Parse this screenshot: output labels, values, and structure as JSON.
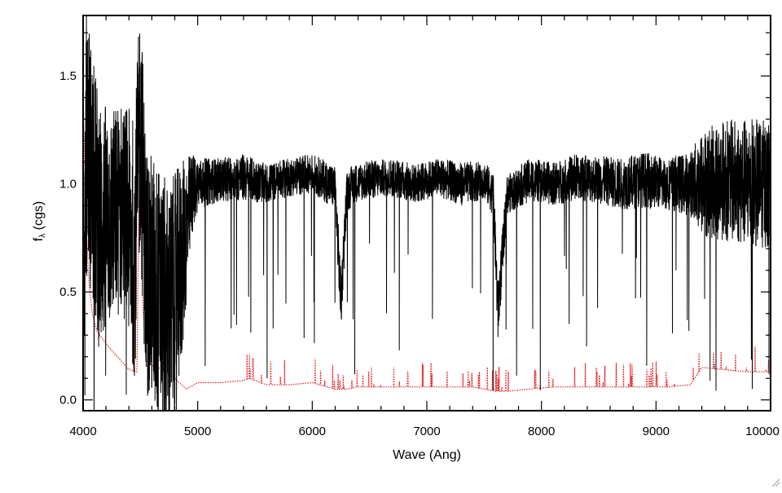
{
  "chart_data": {
    "type": "line",
    "xlabel": "Wave (Ang)",
    "ylabel": "f",
    "ylabel_subscript": "λ",
    "ylabel_suffix": " (cgs)",
    "xlim": [
      4000,
      10000
    ],
    "ylim": [
      -0.05,
      1.78
    ],
    "x_ticks": [
      {
        "value": 4000,
        "label": "4000"
      },
      {
        "value": 5000,
        "label": "5000"
      },
      {
        "value": 6000,
        "label": "6000"
      },
      {
        "value": 7000,
        "label": "7000"
      },
      {
        "value": 8000,
        "label": "8000"
      },
      {
        "value": 9000,
        "label": "9000"
      },
      {
        "value": 10000,
        "label": "10000"
      }
    ],
    "y_ticks": [
      {
        "value": 0.0,
        "label": "0.0"
      },
      {
        "value": 0.5,
        "label": "0.5"
      },
      {
        "value": 1.0,
        "label": "1.0"
      },
      {
        "value": 1.5,
        "label": "1.5"
      }
    ],
    "grid": false,
    "series": [
      {
        "style": "solid",
        "color": "#000000",
        "x": [
          4000,
          4030,
          4080,
          4150,
          4250,
          4350,
          4450,
          4500,
          4550,
          4650,
          4750,
          4850,
          4950,
          5000,
          5200,
          5400,
          5600,
          5800,
          6000,
          6150,
          6200,
          6250,
          6300,
          6350,
          6500,
          6700,
          6900,
          7100,
          7300,
          7500,
          7580,
          7620,
          7700,
          7900,
          8100,
          8300,
          8500,
          8700,
          8900,
          9100,
          9300,
          9400,
          9600,
          9800,
          10000
        ],
        "y": [
          0.2,
          1.3,
          1.0,
          0.8,
          0.85,
          0.9,
          0.7,
          1.3,
          0.6,
          0.5,
          0.4,
          0.6,
          0.95,
          1.0,
          1.02,
          1.03,
          1.0,
          1.03,
          1.05,
          1.0,
          0.98,
          0.45,
          0.95,
          1.0,
          1.02,
          1.03,
          1.0,
          1.03,
          1.0,
          1.02,
          0.95,
          0.4,
          0.95,
          1.02,
          1.0,
          1.03,
          1.02,
          1.0,
          1.02,
          1.0,
          1.0,
          1.0,
          1.02,
          1.0,
          1.0
        ],
        "noise": [
          0.1,
          0.6,
          0.6,
          0.6,
          0.5,
          0.5,
          0.6,
          0.6,
          0.6,
          0.6,
          0.6,
          0.5,
          0.2,
          0.12,
          0.1,
          0.11,
          0.09,
          0.09,
          0.09,
          0.1,
          0.1,
          0.15,
          0.1,
          0.09,
          0.09,
          0.09,
          0.09,
          0.09,
          0.1,
          0.09,
          0.1,
          0.15,
          0.09,
          0.1,
          0.1,
          0.11,
          0.11,
          0.12,
          0.13,
          0.12,
          0.15,
          0.25,
          0.28,
          0.3,
          0.3
        ]
      },
      {
        "style": "dotted",
        "color": "#e11b1b",
        "x": [
          4000,
          4020,
          4050,
          4080,
          4120,
          4200,
          4300,
          4400,
          4470,
          4500,
          4520,
          4550,
          4600,
          4700,
          4800,
          4900,
          5000,
          5200,
          5400,
          5450,
          5600,
          5800,
          6000,
          6200,
          6300,
          6400,
          6600,
          6800,
          7000,
          7200,
          7400,
          7600,
          7700,
          7900,
          8100,
          8300,
          8500,
          8700,
          8900,
          9100,
          9300,
          9400,
          9600,
          9800,
          10000
        ],
        "y": [
          1.45,
          0.9,
          0.55,
          0.4,
          0.32,
          0.26,
          0.2,
          0.14,
          0.13,
          1.45,
          0.45,
          0.18,
          0.16,
          0.14,
          0.1,
          0.05,
          0.08,
          0.08,
          0.09,
          0.1,
          0.07,
          0.07,
          0.08,
          0.05,
          0.05,
          0.06,
          0.06,
          0.06,
          0.06,
          0.06,
          0.06,
          0.04,
          0.04,
          0.05,
          0.06,
          0.06,
          0.06,
          0.06,
          0.06,
          0.06,
          0.07,
          0.15,
          0.14,
          0.13,
          0.13
        ]
      }
    ]
  }
}
